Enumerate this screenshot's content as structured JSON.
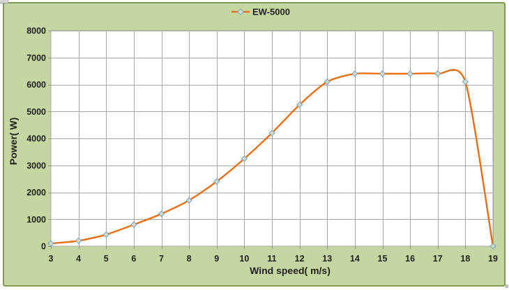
{
  "colors": {
    "background": "#c5d7a0",
    "frame_border": "#7e9b51",
    "plot_bg": "#ffffff",
    "gridline": "#a6a6a6",
    "plot_border": "#a6a6a6",
    "tick_line": "#8f8f8f",
    "series_line": "#ec6e0d",
    "marker_fill": "#ccdccc",
    "marker_stroke": "#7da0c0",
    "text": "#1f1f1f"
  },
  "chart_data": {
    "type": "line",
    "smooth": true,
    "marker": "diamond",
    "title": "",
    "x": [
      3,
      4,
      5,
      6,
      7,
      8,
      9,
      10,
      11,
      12,
      13,
      14,
      15,
      16,
      17,
      18,
      19
    ],
    "series": [
      {
        "name": "EW-5000",
        "values": [
          100,
          200,
          430,
          800,
          1200,
          1700,
          2400,
          3250,
          4200,
          5250,
          6100,
          6400,
          6400,
          6400,
          6400,
          6100,
          0
        ]
      }
    ],
    "xlabel": "Wind speed( m/s)",
    "ylabel": "Power( W)",
    "xlim": [
      3,
      19
    ],
    "ylim": [
      0,
      8000
    ],
    "x_ticks": [
      3,
      4,
      5,
      6,
      7,
      8,
      9,
      10,
      11,
      12,
      13,
      14,
      15,
      16,
      17,
      18,
      19
    ],
    "y_ticks": [
      0,
      1000,
      2000,
      3000,
      4000,
      5000,
      6000,
      7000,
      8000
    ],
    "grid": true,
    "legend_position": "top-center"
  }
}
